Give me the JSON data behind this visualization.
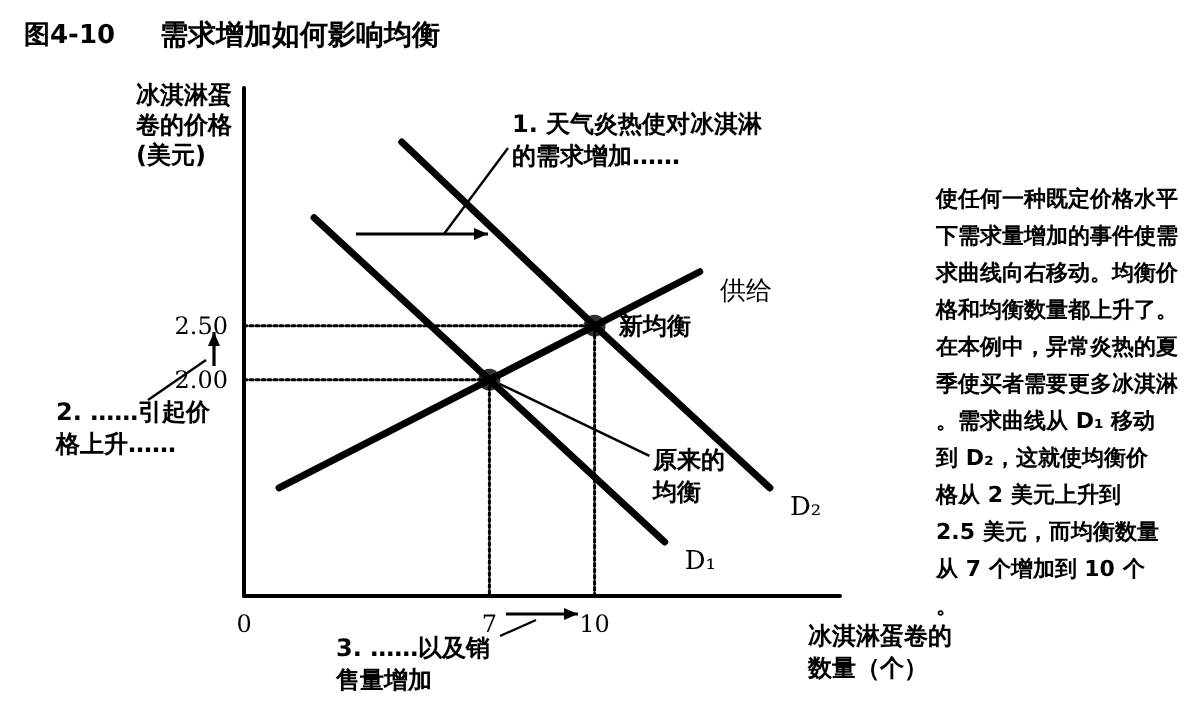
{
  "chart_data": {
    "type": "line",
    "title": "需求增加如何影响均衡",
    "subtitle": "图4-10",
    "xlabel": "冰淇淋蛋卷的数量（个）",
    "ylabel": "冰淇淋蛋卷的价格(美元)",
    "xlim": [
      0,
      17
    ],
    "xticks": [
      0,
      7,
      10
    ],
    "ylim": [
      0,
      4.7
    ],
    "yticks": [
      {
        "value": 2,
        "label": "2.00"
      },
      {
        "value": 2.5,
        "label": "2.50"
      }
    ],
    "grid": false,
    "legend": false,
    "series": [
      {
        "name": "供给",
        "color": "#000000",
        "x": [
          1,
          7,
          10,
          13
        ],
        "values": [
          1,
          2,
          2.5,
          3
        ],
        "marker": "none",
        "line_style": "solid"
      },
      {
        "name": "D₁",
        "color": "#000000",
        "x": [
          2,
          7,
          12
        ],
        "values": [
          3.5,
          2,
          0.5
        ],
        "marker": "none",
        "line_style": "solid"
      },
      {
        "name": "D₂",
        "color": "#000000",
        "x": [
          4.5,
          10,
          15
        ],
        "values": [
          4.2,
          2.5,
          1.0
        ],
        "marker": "none",
        "line_style": "solid"
      },
      {
        "color": "#000000",
        "x": [
          0,
          7,
          7
        ],
        "values": [
          2,
          2,
          0
        ],
        "marker": "none",
        "line_style": "dotted"
      },
      {
        "color": "#000000",
        "x": [
          0,
          10,
          10
        ],
        "values": [
          2.5,
          2.5,
          0
        ],
        "marker": "none",
        "line_style": "dotted"
      },
      {
        "type": "scatter",
        "color": "#000000",
        "x": [
          7,
          10
        ],
        "values": [
          2,
          2.5
        ],
        "marker": "circle"
      }
    ],
    "annotations": [
      {
        "text": "原来的均衡",
        "x": 7,
        "y": 2
      },
      {
        "text": "新均衡",
        "x": 10,
        "y": 2.5
      },
      "1. 天气炎热使对冰淇淋的需求增加……",
      "2. ……引起价格上升……",
      "3. ……以及销售量增加",
      "使任何一种既定价格水平下需求量增加的事件使需求曲线向右移动。均衡价格和均衡数量都上升了。在本例中，异常炎热的夏季使买者需要更多冰淇淋。需求曲线从 D₁ 移动到 D₂，这就使均衡价格从 2 美元上升到 2.5 美元，而均衡数量从 7 个增加到 10 个。"
    ]
  }
}
